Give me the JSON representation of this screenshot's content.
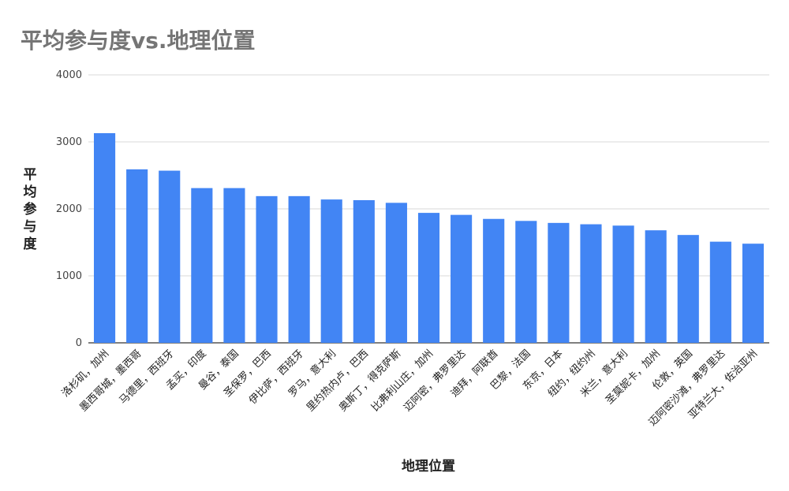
{
  "chart_data": {
    "type": "bar",
    "title": "平均参与度vs.地理位置",
    "xlabel": "地理位置",
    "ylabel": "平均参与度",
    "ylim": [
      0,
      4000
    ],
    "yticks": [
      0,
      1000,
      2000,
      3000,
      4000
    ],
    "grid": true,
    "legend": "none",
    "bar_color": "#4285f4",
    "categories": [
      "洛杉矶，加州",
      "墨西哥城，墨西哥",
      "马德里，西班牙",
      "孟买，印度",
      "曼谷，泰国",
      "圣保罗，巴西",
      "伊比萨，西班牙",
      "罗马，意大利",
      "里约热内卢，巴西",
      "奥斯丁，得克萨斯",
      "比弗利山庄，加州",
      "迈阿密，弗罗里达",
      "迪拜，阿联酋",
      "巴黎，法国",
      "东京，日本",
      "纽约，纽约州",
      "米兰，意大利",
      "圣莫妮卡，加州",
      "伦敦，英国",
      "迈阿密沙滩，弗罗里达",
      "亚特兰大，佐治亚州"
    ],
    "values": [
      3130,
      2590,
      2570,
      2310,
      2310,
      2190,
      2190,
      2140,
      2130,
      2090,
      1940,
      1910,
      1850,
      1820,
      1790,
      1770,
      1750,
      1680,
      1610,
      1510,
      1480
    ]
  }
}
